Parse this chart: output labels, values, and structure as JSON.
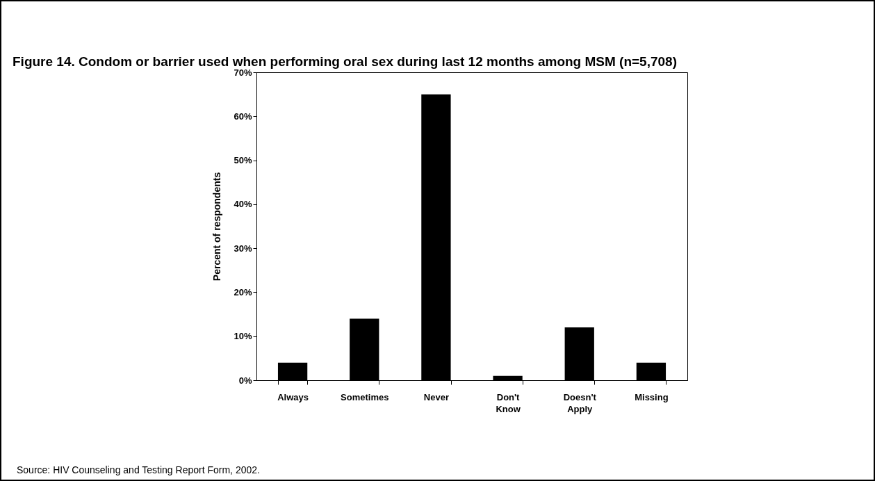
{
  "chart_data": {
    "type": "bar",
    "title": "Figure 14.  Condom or barrier used when performing oral sex during last 12 months among MSM (n=5,708)",
    "ylabel": "Percent of respondents",
    "categories": [
      "Always",
      "Sometimes",
      "Never",
      "Don't Know",
      "Doesn't Apply",
      "Missing"
    ],
    "values": [
      4,
      14,
      65,
      1,
      12,
      4
    ],
    "color": "#000000",
    "ylim": [
      0,
      70
    ],
    "yticks": [
      {
        "value": 0,
        "label": "0%"
      },
      {
        "value": 10,
        "label": "10%"
      },
      {
        "value": 20,
        "label": "20%"
      },
      {
        "value": 30,
        "label": "30%"
      },
      {
        "value": 40,
        "label": "40%"
      },
      {
        "value": 50,
        "label": "50%"
      },
      {
        "value": 60,
        "label": "60%"
      },
      {
        "value": 70,
        "label": "70%"
      }
    ],
    "grid": false,
    "annotations": [
      "Source:  HIV Counseling and Testing Report Form, 2002."
    ]
  }
}
